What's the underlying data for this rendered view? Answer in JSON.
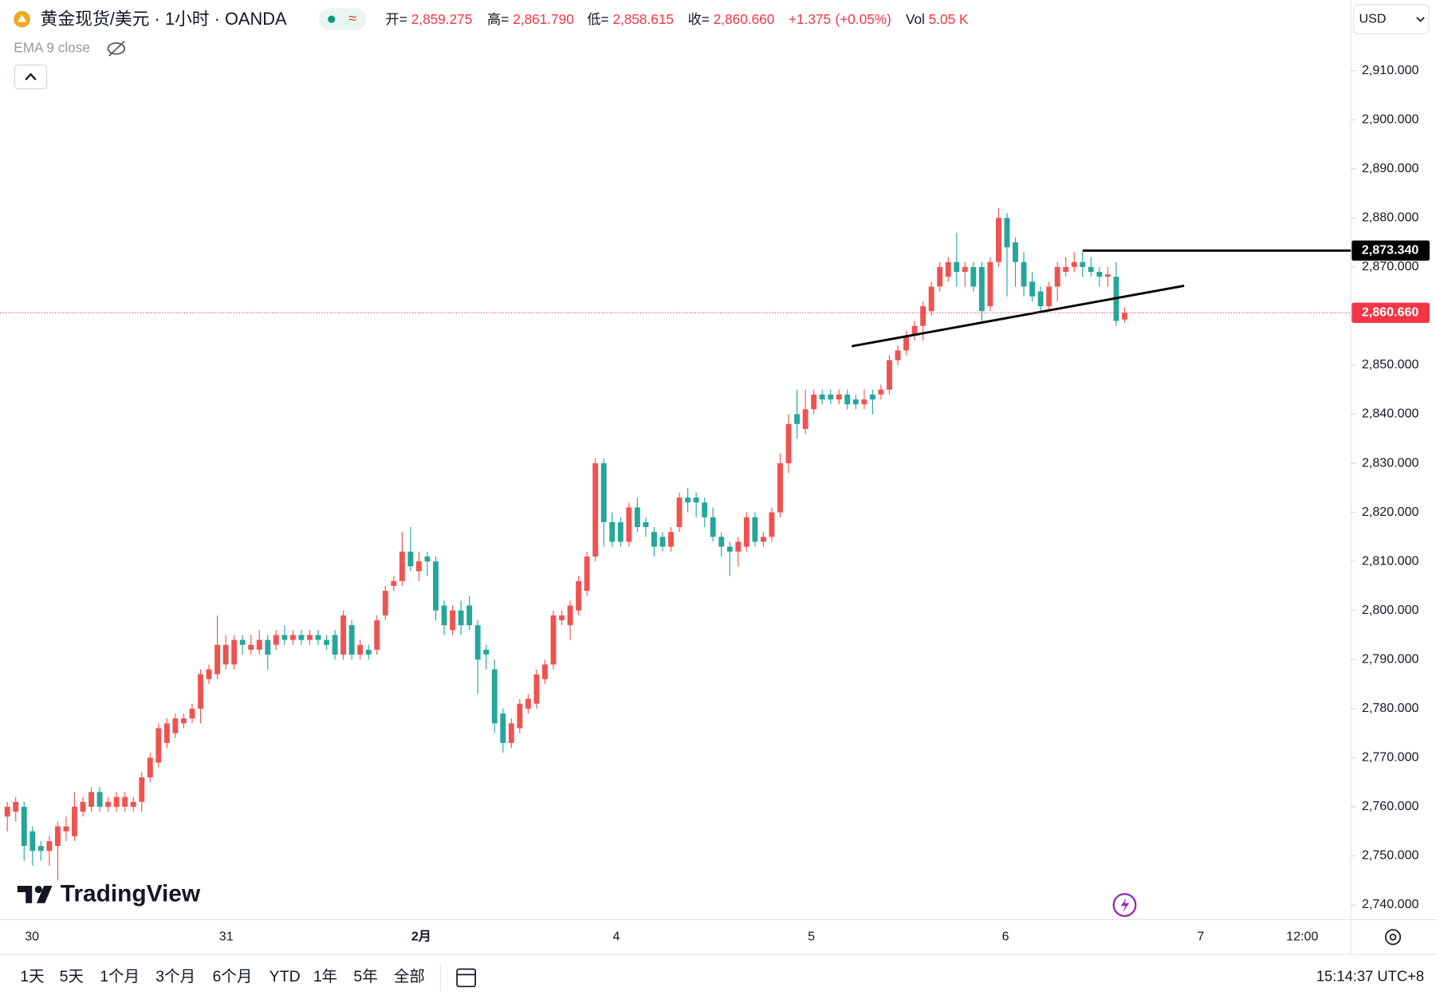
{
  "header": {
    "title": "黄金现货/美元 · 1小时 · OANDA",
    "legend": [
      {
        "name": "开=",
        "value": 2859.275,
        "label": "2,859.275"
      },
      {
        "name": "高=",
        "value": 2861.79,
        "label": "2,861.790"
      },
      {
        "name": "低=",
        "value": 2858.615,
        "label": "2,858.615"
      },
      {
        "name": "收=",
        "value": 2860.66,
        "label": "2,860.660"
      }
    ],
    "change": {
      "value": 1.375,
      "label": "+1.375"
    },
    "change_pct": {
      "value": 0.05,
      "label": "(+0.05%)"
    },
    "volume_name": "Vol",
    "volume": {
      "value": 5050,
      "label": "5.05 K"
    },
    "indicator": "EMA 9 close"
  },
  "currency": "USD",
  "logo": "TradingView",
  "time_labels": [
    "30",
    "31",
    "2月",
    "4",
    "5",
    "6",
    "7",
    "12:00"
  ],
  "ranges": [
    "1天",
    "5天",
    "1个月",
    "3个月",
    "6个月",
    "YTD",
    "1年",
    "5年",
    "全部"
  ],
  "clock": "15:14:37 UTC+8",
  "chart_data": {
    "type": "candlestick",
    "up_color": "#ef5350",
    "down_color": "#26a69a",
    "grid": false,
    "ylim": [
      2737,
      2924.4
    ],
    "yticks": [
      {
        "value": 2740,
        "label": "2,740.000"
      },
      {
        "value": 2750,
        "label": "2,750.000"
      },
      {
        "value": 2760,
        "label": "2,760.000"
      },
      {
        "value": 2770,
        "label": "2,770.000"
      },
      {
        "value": 2780,
        "label": "2,780.000"
      },
      {
        "value": 2790,
        "label": "2,790.000"
      },
      {
        "value": 2800,
        "label": "2,800.000"
      },
      {
        "value": 2810,
        "label": "2,810.000"
      },
      {
        "value": 2820,
        "label": "2,820.000"
      },
      {
        "value": 2830,
        "label": "2,830.000"
      },
      {
        "value": 2840,
        "label": "2,840.000"
      },
      {
        "value": 2850,
        "label": "2,850.000"
      },
      {
        "value": 2860,
        "label": "2,860.000"
      },
      {
        "value": 2870,
        "label": "2,870.000"
      },
      {
        "value": 2880,
        "label": "2,880.000"
      },
      {
        "value": 2890,
        "label": "2,890.000"
      },
      {
        "value": 2900,
        "label": "2,900.000"
      },
      {
        "value": 2910,
        "label": "2,910.000"
      }
    ],
    "price_lines": [
      {
        "value": 2873.34,
        "label": "2,873.340",
        "color": "#000000"
      },
      {
        "value": 2860.66,
        "label": "2,860.660",
        "color": "#f23645"
      }
    ],
    "open": [
      2758,
      2759,
      2760,
      2755,
      2752,
      2751,
      2752,
      2755,
      2754,
      2759,
      2760,
      2763,
      2760,
      2760,
      2760,
      2760,
      2761,
      2766,
      2769,
      2773,
      2775,
      2777,
      2778,
      2780,
      2786,
      2787,
      2789,
      2789,
      2794,
      2792,
      2792,
      2794,
      2793,
      2795,
      2794,
      2795,
      2794,
      2795,
      2794,
      2795,
      2791,
      2797,
      2791,
      2792,
      2792,
      2799,
      2805,
      2806,
      2812,
      2808,
      2811,
      2810,
      2801,
      2796,
      2800,
      2801,
      2797,
      2792,
      2788,
      2779,
      2773,
      2776,
      2780,
      2781,
      2786,
      2789,
      2798,
      2797,
      2800,
      2804,
      2811,
      2830,
      2818,
      2818,
      2814,
      2821,
      2818,
      2816,
      2815,
      2813,
      2817,
      2823,
      2823,
      2822,
      2819,
      2815,
      2813,
      2812,
      2813,
      2819,
      2814,
      2815,
      2820,
      2830,
      2840,
      2837,
      2841,
      2844,
      2844,
      2843,
      2844,
      2843,
      2842,
      2844,
      2844,
      2845,
      2851,
      2853,
      2856,
      2858,
      2861,
      2866,
      2868,
      2871,
      2869,
      2870,
      2870,
      2862,
      2871,
      2880,
      2875,
      2871,
      2867,
      2865,
      2862,
      2866,
      2869,
      2870,
      2871,
      2870,
      2869,
      2868,
      2868,
      2859.275
    ],
    "high": [
      2761,
      2762,
      2761,
      2756,
      2753,
      2754,
      2757,
      2758,
      2763,
      2762,
      2764,
      2764,
      2762,
      2763,
      2763,
      2762,
      2767,
      2771,
      2777,
      2778,
      2779,
      2779,
      2781,
      2788,
      2789,
      2799,
      2795,
      2795,
      2795,
      2795,
      2796,
      2795,
      2796,
      2797,
      2796,
      2796,
      2796,
      2796,
      2795,
      2796,
      2800,
      2798,
      2794,
      2793,
      2799,
      2805,
      2807,
      2816,
      2817,
      2812,
      2812,
      2811,
      2802,
      2801,
      2802,
      2803,
      2798,
      2793,
      2790,
      2780,
      2778,
      2782,
      2783,
      2788,
      2790,
      2800,
      2800,
      2802,
      2807,
      2812,
      2831,
      2831,
      2820,
      2819,
      2822,
      2823,
      2819,
      2817,
      2816,
      2817,
      2824,
      2825,
      2824,
      2823,
      2821,
      2816,
      2814,
      2815,
      2820,
      2820,
      2816,
      2821,
      2832,
      2840,
      2845,
      2845,
      2845,
      2845,
      2845,
      2845,
      2845,
      2844,
      2845,
      2845,
      2846,
      2852,
      2854,
      2857,
      2859,
      2863,
      2867,
      2871,
      2872,
      2877,
      2871,
      2871,
      2871,
      2872,
      2882,
      2881,
      2876,
      2873,
      2869,
      2866,
      2867,
      2871,
      2872,
      2873,
      2873,
      2872,
      2870,
      2870,
      2871,
      2861.79
    ],
    "low": [
      2755,
      2757,
      2749,
      2748,
      2749,
      2748,
      2745,
      2753,
      2753,
      2758,
      2759,
      2759,
      2759,
      2759,
      2759,
      2759,
      2759,
      2765,
      2768,
      2772,
      2774,
      2776,
      2777,
      2777,
      2785,
      2786,
      2788,
      2788,
      2791,
      2791,
      2791,
      2788,
      2792,
      2793,
      2793,
      2793,
      2793,
      2793,
      2792,
      2790,
      2790,
      2790,
      2790,
      2790,
      2791,
      2798,
      2804,
      2805,
      2808,
      2806,
      2807,
      2798,
      2795,
      2795,
      2795,
      2796,
      2783,
      2788,
      2775,
      2771,
      2772,
      2775,
      2779,
      2780,
      2785,
      2788,
      2797,
      2794,
      2799,
      2803,
      2810,
      2813,
      2813,
      2813,
      2813,
      2816,
      2815,
      2811,
      2812,
      2812,
      2816,
      2820,
      2819,
      2817,
      2814,
      2811,
      2807,
      2809,
      2812,
      2813,
      2813,
      2814,
      2819,
      2828,
      2835,
      2836,
      2840,
      2842,
      2842,
      2842,
      2841,
      2841,
      2841,
      2840,
      2843,
      2844,
      2850,
      2852,
      2855,
      2855,
      2860,
      2865,
      2867,
      2866,
      2866,
      2865,
      2859,
      2861,
      2870,
      2864,
      2866,
      2864,
      2863,
      2861,
      2861,
      2863,
      2868,
      2869,
      2868,
      2868,
      2866,
      2866,
      2858,
      2858.615
    ],
    "close": [
      2760,
      2761,
      2752,
      2751,
      2751,
      2753,
      2756,
      2756,
      2760,
      2761,
      2763,
      2760,
      2761,
      2762,
      2762,
      2761,
      2766,
      2770,
      2776,
      2777,
      2778,
      2778,
      2780,
      2787,
      2788,
      2793,
      2793,
      2794,
      2793,
      2793,
      2794,
      2791,
      2795,
      2794,
      2795,
      2794,
      2795,
      2794,
      2793,
      2791,
      2799,
      2791,
      2793,
      2791,
      2798,
      2804,
      2806,
      2812,
      2809,
      2810,
      2810,
      2800,
      2797,
      2800,
      2797,
      2797,
      2790,
      2791,
      2777,
      2773,
      2777,
      2781,
      2782,
      2787,
      2789,
      2799,
      2799,
      2801,
      2806,
      2811,
      2830,
      2818,
      2814,
      2814,
      2821,
      2817,
      2817,
      2813,
      2813,
      2816,
      2823,
      2822,
      2822,
      2819,
      2815,
      2813,
      2812,
      2814,
      2819,
      2814,
      2815,
      2820,
      2830,
      2838,
      2838,
      2841,
      2844,
      2843,
      2843,
      2844,
      2842,
      2842,
      2843,
      2843,
      2845,
      2851,
      2853,
      2856,
      2858,
      2862,
      2866,
      2870,
      2871,
      2869,
      2870,
      2866,
      2861,
      2871,
      2880,
      2874,
      2871,
      2866,
      2864,
      2862,
      2866,
      2870,
      2870,
      2871,
      2870,
      2869,
      2868,
      2868.5,
      2859,
      2860.66
    ]
  }
}
